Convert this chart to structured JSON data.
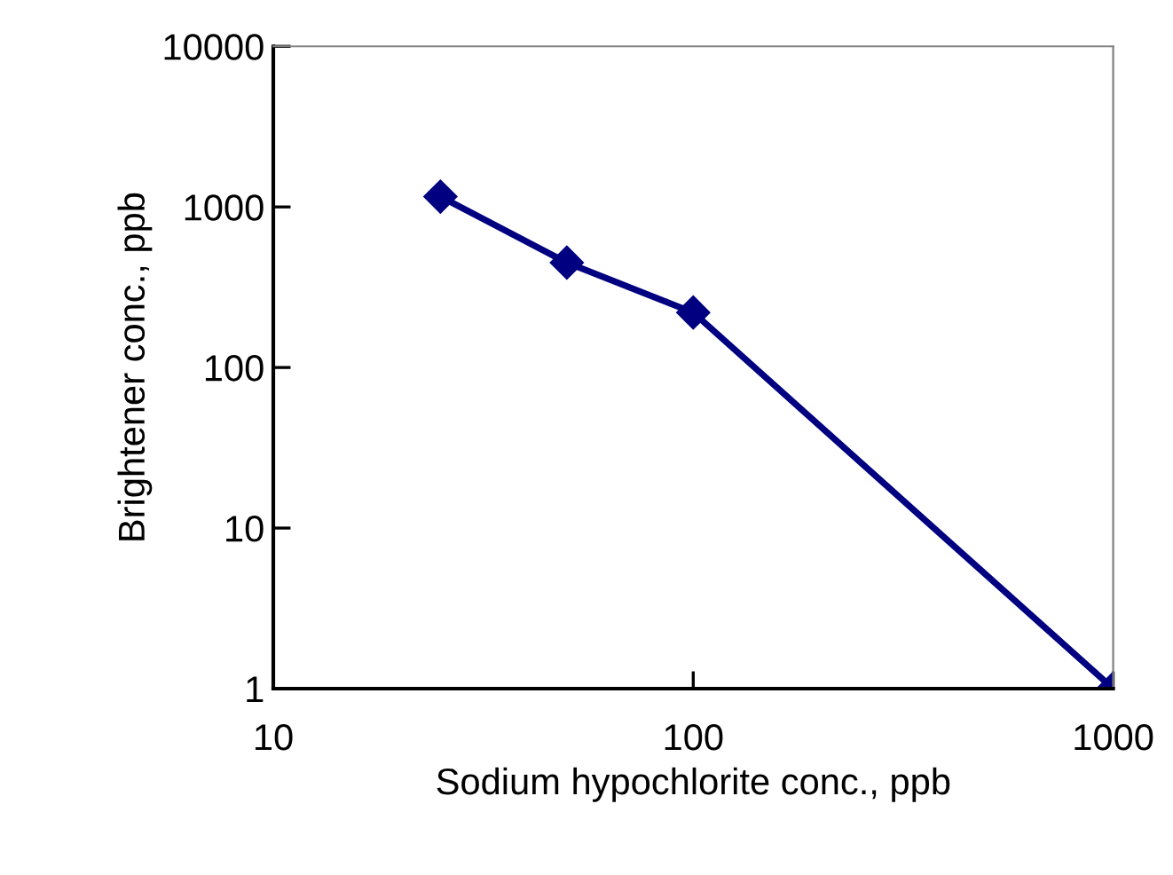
{
  "chart_data": {
    "type": "line",
    "xlabel": "Sodium hypochlorite conc., ppb",
    "ylabel": "Brightener conc., ppb",
    "x": [
      25,
      50,
      100,
      1000
    ],
    "series": [
      {
        "color": "#000080",
        "values": [
          1160,
          450,
          220,
          1
        ]
      }
    ],
    "log": "xy",
    "xlim": [
      10,
      1000
    ],
    "ylim": [
      1,
      10000
    ],
    "xticks": [
      10,
      100,
      1000
    ],
    "yticks": [
      1,
      10,
      100,
      1000,
      10000
    ],
    "marker": "diamond",
    "line_style": "solid",
    "grid": false,
    "legend": false
  }
}
